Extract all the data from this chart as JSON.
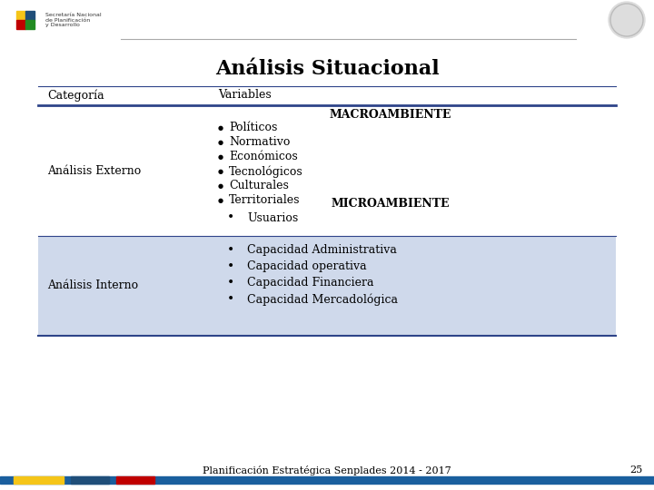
{
  "title": "Análisis Situacional",
  "bg_color": "#ffffff",
  "table_header": [
    "Categoría",
    "Variables"
  ],
  "header_line_color": "#2e4489",
  "row1_category": "Análisis Externo",
  "row1_variables_macro_title": "MACROAMBIENTE",
  "row1_variables_macro": [
    "Políticos",
    "Normativo",
    "Económicos",
    "Tecnológicos",
    "Culturales",
    "Territoriales"
  ],
  "row1_variables_micro_title": "MICROAMBIENTE",
  "row1_variables_micro": [
    "Usuarios"
  ],
  "row2_category": "Análisis Interno",
  "row2_variables": [
    "Capacidad Administrativa",
    "Capacidad operativa",
    "Capacidad Financiera",
    "Capacidad Mercadológica"
  ],
  "row2_bg_color": "#cfd9eb",
  "footer_text": "Planificación Estratégica Senplades 2014 - 2017",
  "footer_page": "25",
  "footer_bar_yellow": "#f5c518",
  "footer_bar_blue_small": "#1f4e79",
  "footer_bar_red": "#c00000",
  "footer_bar_blue_long": "#1a5f9e",
  "top_line_color": "#2e4489",
  "font_family": "serif",
  "text_color": "#000000"
}
